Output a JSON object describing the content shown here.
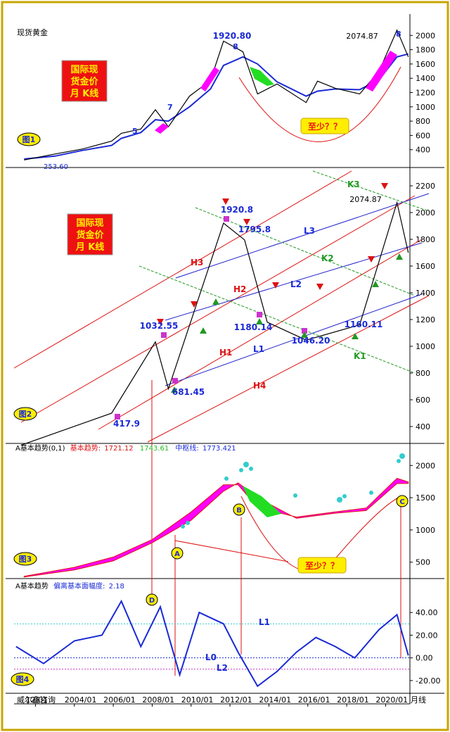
{
  "panel1": {
    "title": "现货黄金",
    "badge": "图1",
    "banner": [
      "国际现",
      "货金价",
      "月 K线"
    ],
    "callout": "至少？？",
    "high_label": "1920.80",
    "high_wave": "8",
    "ath_label": "2074.87",
    "ath_wave": "8",
    "low_label": "253.60",
    "wave_labels": [
      "5",
      "7"
    ],
    "y_ticks": [
      "2000",
      "1800",
      "1600",
      "1400",
      "1200",
      "1000",
      "800",
      "600",
      "400"
    ]
  },
  "panel2": {
    "badge": "图2",
    "banner": [
      "国际现",
      "货金价",
      "月 K线"
    ],
    "price_labels": [
      "1920.8",
      "1795.8",
      "2074.87",
      "1032.55",
      "1180.14",
      "1046.20",
      "1160.11",
      "681.45",
      "417.9"
    ],
    "line_labels": [
      "K3",
      "L3",
      "K2",
      "H3",
      "L2",
      "H2",
      "H1",
      "L1",
      "K1",
      "H4"
    ],
    "y_ticks": [
      "2200",
      "2000",
      "1800",
      "1600",
      "1400",
      "1200",
      "1000",
      "800",
      "600",
      "400"
    ]
  },
  "panel3": {
    "badge": "图3",
    "header": {
      "name": "A基本趋势(0,1)",
      "base_label": "基本趋势:",
      "base_value": "1721.12",
      "green_value": "1743.61",
      "mid_label": "中枢线:",
      "mid_value": "1773.421"
    },
    "callout": "至少？？",
    "markers": [
      "A",
      "B",
      "C",
      "D"
    ],
    "y_ticks": [
      "2000",
      "1500",
      "1000",
      "500"
    ]
  },
  "panel4": {
    "badge": "图4",
    "header": {
      "name": "A基本趋势",
      "dev_label": "偏离基本面幅度:",
      "dev_value": "2.18"
    },
    "line_labels": [
      "L1",
      "L0",
      "L2"
    ],
    "y_ticks": [
      "40.00",
      "20.00",
      "0.00",
      "-20.00"
    ]
  },
  "footer": {
    "source": "威尔鑫咨询",
    "period": "月线",
    "x_ticks": [
      "12/01",
      "2004/01",
      "2006/01",
      "2008/01",
      "2010/01",
      "2012/01",
      "2014/01",
      "2016/01",
      "2018/01",
      "2020/01"
    ]
  },
  "colors": {
    "price": "#000000",
    "ma_blue": "#1a2ad6",
    "magenta": "#ff00ff",
    "green_fill": "#22dd22",
    "red_line": "#dd1111",
    "channel_blue": "#2222cc",
    "channel_green": "#229922",
    "banner_bg": "#ee1111",
    "banner_text": "#ffee00",
    "badge_bg": "#ffee00"
  },
  "chart_data": [
    {
      "type": "line",
      "name": "panel1",
      "x": [
        "2001/06",
        "2003/01",
        "2004/06",
        "2005/12",
        "2006/06",
        "2007/06",
        "2008/03",
        "2008/11",
        "2009/12",
        "2011/01",
        "2011/09",
        "2012/09",
        "2013/06",
        "2014/06",
        "2015/12",
        "2016/07",
        "2017/06",
        "2018/09",
        "2019/09",
        "2020/08",
        "2021/03"
      ],
      "series": [
        {
          "values": [
            256,
            340,
            410,
            520,
            630,
            690,
            960,
            720,
            1150,
            1370,
            1920,
            1770,
            1180,
            1320,
            1060,
            1360,
            1260,
            1180,
            1500,
            2074,
            1700
          ]
        },
        {
          "values": [
            270,
            310,
            390,
            460,
            560,
            640,
            820,
            800,
            1000,
            1250,
            1580,
            1700,
            1600,
            1350,
            1150,
            1220,
            1250,
            1240,
            1380,
            1700,
            1740
          ]
        }
      ],
      "y_ticks": [
        400,
        600,
        800,
        1000,
        1200,
        1400,
        1600,
        1800,
        2000
      ],
      "labels": {
        "1920.80": 1920.8,
        "2074.87": 2074.87,
        "253.60": 253.6
      }
    },
    {
      "type": "line",
      "name": "panel2",
      "x": [
        "2001/04",
        "2005/12",
        "2008/03",
        "2008/11",
        "2011/09",
        "2012/10",
        "2013/12",
        "2015/12",
        "2018/09",
        "2020/08",
        "2021/03"
      ],
      "series": [
        {
          "values": [
            260,
            500,
            1032.55,
            681.45,
            1920.8,
            1795.8,
            1180.14,
            1046.2,
            1160.11,
            2074.87,
            1700
          ]
        }
      ],
      "y_ticks": [
        400,
        600,
        800,
        1000,
        1200,
        1400,
        1600,
        1800,
        2000,
        2200
      ],
      "labels": {
        "1920.8": 1920.8,
        "1795.8": 1795.8,
        "2074.87": 2074.87,
        "1032.55": 1032.55,
        "1180.14": 1180.14,
        "1046.20": 1046.2,
        "1160.11": 1160.11,
        "681.45": 681.45,
        "417.9": 417.9
      }
    },
    {
      "type": "area",
      "name": "panel3",
      "x": [
        "2001/06",
        "2004/01",
        "2006/01",
        "2008/01",
        "2010/01",
        "2011/09",
        "2012/06",
        "2013/06",
        "2015/06",
        "2017/06",
        "2019/01",
        "2020/08",
        "2021/03"
      ],
      "series": [
        {
          "name": "基本趋势",
          "values": [
            270,
            380,
            520,
            800,
            1150,
            1600,
            1730,
            1500,
            1180,
            1260,
            1300,
            1720,
            1721.12
          ]
        },
        {
          "values": [
            280,
            420,
            580,
            850,
            1280,
            1700,
            1700,
            1350,
            1200,
            1280,
            1340,
            1800,
            1743.61
          ]
        }
      ],
      "y_ticks": [
        500,
        1000,
        1500,
        2000
      ]
    },
    {
      "type": "line",
      "name": "panel4",
      "x": [
        "2001/01",
        "2002/06",
        "2004/01",
        "2005/06",
        "2006/06",
        "2007/06",
        "2008/06",
        "2009/06",
        "2010/06",
        "2011/09",
        "2012/06",
        "2013/06",
        "2014/06",
        "2015/06",
        "2016/06",
        "2017/06",
        "2018/06",
        "2019/09",
        "2020/08",
        "2021/03"
      ],
      "series": [
        {
          "name": "偏离基本面幅度",
          "values": [
            10,
            -5,
            15,
            20,
            50,
            10,
            45,
            -15,
            40,
            30,
            5,
            -25,
            -12,
            5,
            18,
            10,
            0,
            25,
            38,
            2.18
          ]
        }
      ],
      "y_ticks": [
        -20,
        0,
        20,
        40
      ]
    }
  ]
}
